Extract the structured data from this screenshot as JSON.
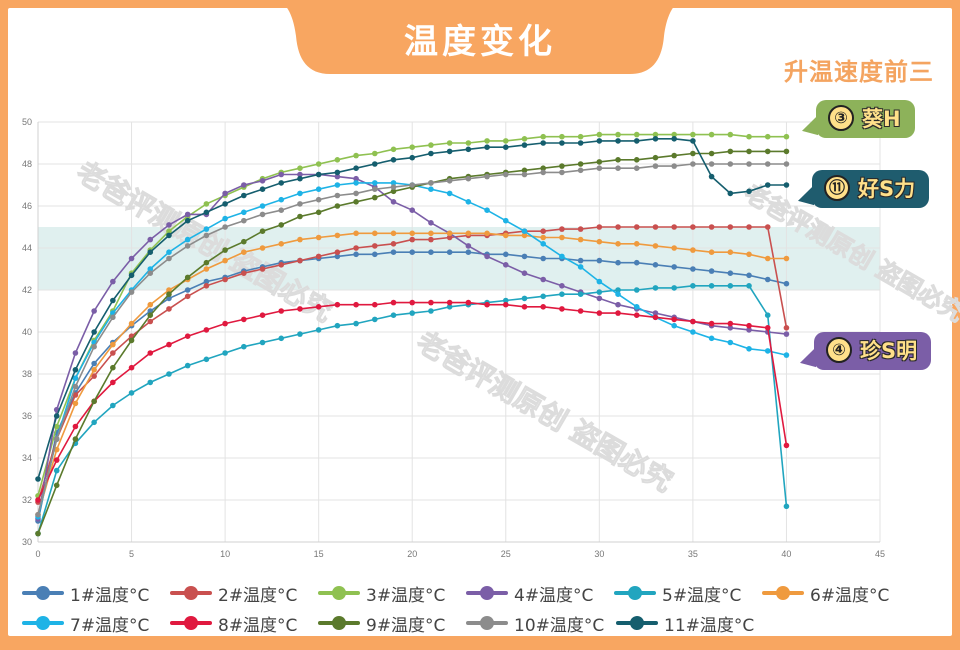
{
  "header": {
    "title": "温度变化",
    "subtitle": "升温速度前三"
  },
  "callouts": [
    {
      "rank": "③",
      "label": "葵H",
      "series": "3#温度°C",
      "color": "#8db25a"
    },
    {
      "rank": "⑪",
      "label": "好S力",
      "series": "11#温度°C",
      "color": "#1f5c6e"
    },
    {
      "rank": "④",
      "label": "珍S明",
      "series": "4#温度°C",
      "color": "#7b5ea7"
    }
  ],
  "watermark": "老爸评测原创 盗图必究",
  "chart_data": {
    "type": "line",
    "title": "温度变化",
    "xlabel": "",
    "ylabel": "",
    "xlim": [
      0,
      45
    ],
    "ylim": [
      30,
      50
    ],
    "xticks": [
      0,
      5,
      10,
      15,
      20,
      25,
      30,
      35,
      40,
      45
    ],
    "yticks": [
      30,
      32,
      34,
      36,
      38,
      40,
      42,
      44,
      46,
      48,
      50
    ],
    "grid": true,
    "legend_position": "bottom",
    "highlight_band": {
      "y_from": 42,
      "y_to": 45,
      "color": "#d6ebea"
    },
    "x": [
      0,
      1,
      2,
      3,
      4,
      5,
      6,
      7,
      8,
      9,
      10,
      11,
      12,
      13,
      14,
      15,
      16,
      17,
      18,
      19,
      20,
      21,
      22,
      23,
      24,
      25,
      26,
      27,
      28,
      29,
      30,
      31,
      32,
      33,
      34,
      35,
      36,
      37,
      38,
      39,
      40
    ],
    "series": [
      {
        "name": "1#温度°C",
        "color": "#4a7fb5",
        "values": [
          31.0,
          35.2,
          37.1,
          38.5,
          39.5,
          40.3,
          41.0,
          41.6,
          42.0,
          42.4,
          42.6,
          42.9,
          43.1,
          43.3,
          43.4,
          43.5,
          43.6,
          43.7,
          43.7,
          43.8,
          43.8,
          43.8,
          43.8,
          43.8,
          43.7,
          43.7,
          43.6,
          43.5,
          43.5,
          43.4,
          43.4,
          43.3,
          43.3,
          43.2,
          43.1,
          43.0,
          42.9,
          42.8,
          42.7,
          42.5,
          42.3
        ]
      },
      {
        "name": "2#温度°C",
        "color": "#c9504f",
        "values": [
          31.9,
          34.9,
          37.0,
          37.9,
          39.0,
          39.8,
          40.5,
          41.1,
          41.7,
          42.2,
          42.5,
          42.8,
          43.0,
          43.2,
          43.4,
          43.6,
          43.8,
          44.0,
          44.1,
          44.2,
          44.4,
          44.4,
          44.5,
          44.6,
          44.6,
          44.7,
          44.8,
          44.8,
          44.9,
          44.9,
          45.0,
          45.0,
          45.0,
          45.0,
          45.0,
          45.0,
          45.0,
          45.0,
          45.0,
          45.0,
          40.2
        ]
      },
      {
        "name": "3#温度°C",
        "color": "#8fc151",
        "values": [
          32.2,
          35.5,
          37.8,
          39.6,
          41.0,
          42.8,
          43.9,
          44.8,
          45.5,
          46.1,
          46.5,
          46.9,
          47.3,
          47.6,
          47.8,
          48.0,
          48.2,
          48.4,
          48.5,
          48.7,
          48.8,
          48.9,
          49.0,
          49.0,
          49.1,
          49.1,
          49.2,
          49.3,
          49.3,
          49.3,
          49.4,
          49.4,
          49.4,
          49.4,
          49.4,
          49.4,
          49.4,
          49.4,
          49.3,
          49.3,
          49.3
        ]
      },
      {
        "name": "4#温度°C",
        "color": "#7b5ea7",
        "values": [
          31.1,
          36.3,
          39.0,
          41.0,
          42.4,
          43.5,
          44.4,
          45.1,
          45.6,
          45.6,
          46.6,
          47.0,
          47.2,
          47.5,
          47.5,
          47.5,
          47.4,
          47.3,
          46.9,
          46.2,
          45.8,
          45.2,
          44.7,
          44.1,
          43.6,
          43.2,
          42.8,
          42.5,
          42.2,
          41.9,
          41.6,
          41.3,
          41.1,
          40.9,
          40.7,
          40.5,
          40.3,
          40.2,
          40.1,
          40.0,
          39.9
        ]
      },
      {
        "name": "5#温度°C",
        "color": "#21a5bf",
        "values": [
          30.4,
          33.4,
          34.7,
          35.7,
          36.5,
          37.1,
          37.6,
          38.0,
          38.4,
          38.7,
          39.0,
          39.3,
          39.5,
          39.7,
          39.9,
          40.1,
          40.3,
          40.4,
          40.6,
          40.8,
          40.9,
          41.0,
          41.2,
          41.3,
          41.4,
          41.5,
          41.6,
          41.7,
          41.8,
          41.8,
          41.9,
          42.0,
          42.0,
          42.1,
          42.1,
          42.2,
          42.2,
          42.2,
          42.2,
          40.8,
          31.7
        ]
      },
      {
        "name": "6#温度°C",
        "color": "#ef9a3e",
        "values": [
          31.3,
          34.4,
          36.6,
          38.2,
          39.4,
          40.4,
          41.3,
          42.0,
          42.5,
          43.0,
          43.4,
          43.8,
          44.0,
          44.2,
          44.4,
          44.5,
          44.6,
          44.7,
          44.7,
          44.7,
          44.7,
          44.7,
          44.7,
          44.7,
          44.7,
          44.6,
          44.6,
          44.5,
          44.5,
          44.4,
          44.3,
          44.2,
          44.2,
          44.1,
          44.0,
          43.9,
          43.8,
          43.8,
          43.7,
          43.5,
          43.5
        ]
      },
      {
        "name": "7#温度°C",
        "color": "#1eb3e6",
        "values": [
          31.2,
          34.9,
          37.8,
          39.5,
          40.9,
          42.0,
          43.0,
          43.8,
          44.4,
          44.9,
          45.4,
          45.7,
          46.0,
          46.3,
          46.6,
          46.8,
          47.0,
          47.1,
          47.1,
          47.1,
          47.0,
          46.8,
          46.6,
          46.2,
          45.8,
          45.3,
          44.8,
          44.2,
          43.6,
          43.1,
          42.4,
          41.8,
          41.2,
          40.7,
          40.3,
          40.0,
          39.7,
          39.5,
          39.2,
          39.1,
          38.9
        ]
      },
      {
        "name": "8#温度°C",
        "color": "#e0193f",
        "values": [
          32.0,
          33.9,
          35.5,
          36.7,
          37.6,
          38.3,
          39.0,
          39.4,
          39.8,
          40.1,
          40.4,
          40.6,
          40.8,
          41.0,
          41.1,
          41.2,
          41.3,
          41.3,
          41.3,
          41.4,
          41.4,
          41.4,
          41.4,
          41.4,
          41.3,
          41.3,
          41.2,
          41.2,
          41.1,
          41.0,
          40.9,
          40.9,
          40.8,
          40.7,
          40.6,
          40.5,
          40.4,
          40.4,
          40.3,
          40.2,
          34.6
        ]
      },
      {
        "name": "9#温度°C",
        "color": "#5b7a2c",
        "values": [
          30.4,
          32.7,
          34.9,
          36.7,
          38.3,
          39.6,
          40.8,
          41.8,
          42.6,
          43.3,
          43.9,
          44.3,
          44.8,
          45.1,
          45.5,
          45.7,
          46.0,
          46.2,
          46.4,
          46.7,
          46.9,
          47.1,
          47.3,
          47.4,
          47.5,
          47.6,
          47.7,
          47.8,
          47.9,
          48.0,
          48.1,
          48.2,
          48.2,
          48.3,
          48.4,
          48.5,
          48.5,
          48.6,
          48.6,
          48.6,
          48.6
        ]
      },
      {
        "name": "10#温度°C",
        "color": "#8c8c8c",
        "values": [
          31.3,
          34.9,
          37.4,
          39.3,
          40.7,
          41.9,
          42.8,
          43.5,
          44.1,
          44.6,
          45.0,
          45.3,
          45.6,
          45.8,
          46.1,
          46.3,
          46.5,
          46.6,
          46.8,
          46.9,
          47.0,
          47.1,
          47.2,
          47.3,
          47.4,
          47.5,
          47.5,
          47.6,
          47.6,
          47.7,
          47.8,
          47.8,
          47.8,
          47.9,
          47.9,
          48.0,
          48.0,
          48.0,
          48.0,
          48.0,
          48.0
        ]
      },
      {
        "name": "11#温度°C",
        "color": "#155e6e",
        "values": [
          33.0,
          36.0,
          38.2,
          40.0,
          41.5,
          42.7,
          43.8,
          44.6,
          45.3,
          45.7,
          46.1,
          46.5,
          46.8,
          47.1,
          47.3,
          47.5,
          47.6,
          47.8,
          48.0,
          48.2,
          48.3,
          48.5,
          48.6,
          48.7,
          48.8,
          48.8,
          48.9,
          49.0,
          49.0,
          49.0,
          49.1,
          49.1,
          49.1,
          49.2,
          49.2,
          49.1,
          47.4,
          46.6,
          46.7,
          47.0,
          47.0
        ]
      }
    ]
  }
}
